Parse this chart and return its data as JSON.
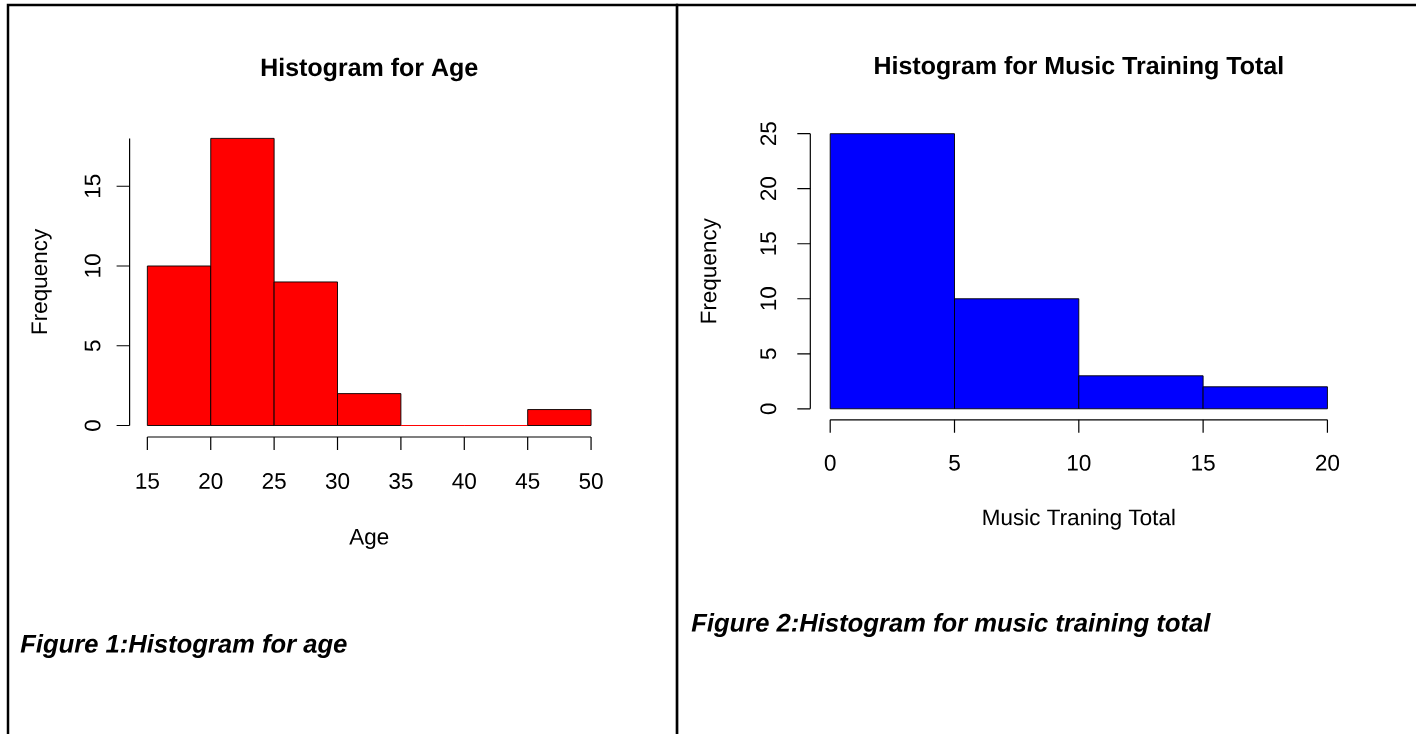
{
  "chart_data": [
    {
      "type": "histogram",
      "title": "Histogram for Age",
      "xlabel": "Age",
      "ylabel": "Frequency",
      "bins": [
        15,
        20,
        25,
        30,
        35,
        40,
        45,
        50
      ],
      "values": [
        10,
        18,
        9,
        2,
        0,
        0,
        1
      ],
      "color": "#ff0000",
      "xlim": [
        15,
        50
      ],
      "ylim": [
        0,
        18
      ],
      "xticks": [
        15,
        20,
        25,
        30,
        35,
        40,
        45,
        50
      ],
      "yticks": [
        0,
        5,
        10,
        15
      ],
      "annotations": [
        "Figure 1:Histogram for age"
      ]
    },
    {
      "type": "histogram",
      "title": "Histogram for Music Training Total",
      "xlabel": "Music Traning Total",
      "ylabel": "Frequency",
      "bins": [
        0,
        5,
        10,
        15,
        20
      ],
      "values": [
        25,
        10,
        3,
        2
      ],
      "color": "#0000ff",
      "xlim": [
        0,
        20
      ],
      "ylim": [
        0,
        25
      ],
      "xticks": [
        0,
        5,
        10,
        15,
        20
      ],
      "yticks": [
        0,
        5,
        10,
        15,
        20,
        25
      ],
      "annotations": [
        "Figure 2:Histogram for music training total"
      ]
    }
  ]
}
